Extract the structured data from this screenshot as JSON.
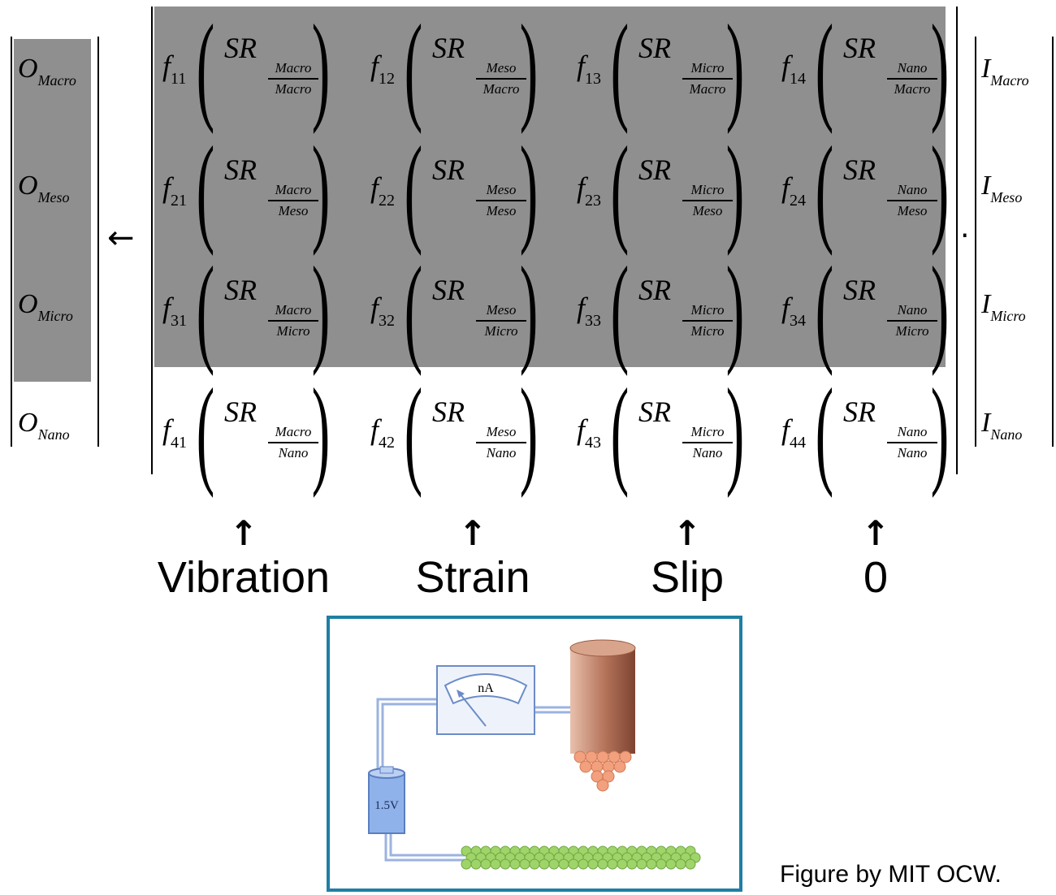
{
  "output_vector": [
    {
      "base": "O",
      "sub": "Macro"
    },
    {
      "base": "O",
      "sub": "Meso"
    },
    {
      "base": "O",
      "sub": "Micro"
    },
    {
      "base": "O",
      "sub": "Nano"
    }
  ],
  "input_vector": [
    {
      "base": "I",
      "sub": "Macro"
    },
    {
      "base": "I",
      "sub": "Meso"
    },
    {
      "base": "I",
      "sub": "Micro"
    },
    {
      "base": "I",
      "sub": "Nano"
    }
  ],
  "assign_arrow": "←",
  "dot_operator": "·",
  "matrix": {
    "function_symbol": "f",
    "ratio_symbol": "SR",
    "rows": [
      [
        {
          "idx": "11",
          "num": "Macro",
          "den": "Macro"
        },
        {
          "idx": "12",
          "num": "Meso",
          "den": "Macro"
        },
        {
          "idx": "13",
          "num": "Micro",
          "den": "Macro"
        },
        {
          "idx": "14",
          "num": "Nano",
          "den": "Macro"
        }
      ],
      [
        {
          "idx": "21",
          "num": "Macro",
          "den": "Meso"
        },
        {
          "idx": "22",
          "num": "Meso",
          "den": "Meso"
        },
        {
          "idx": "23",
          "num": "Micro",
          "den": "Meso"
        },
        {
          "idx": "24",
          "num": "Nano",
          "den": "Meso"
        }
      ],
      [
        {
          "idx": "31",
          "num": "Macro",
          "den": "Micro"
        },
        {
          "idx": "32",
          "num": "Meso",
          "den": "Micro"
        },
        {
          "idx": "33",
          "num": "Micro",
          "den": "Micro"
        },
        {
          "idx": "34",
          "num": "Nano",
          "den": "Micro"
        }
      ],
      [
        {
          "idx": "41",
          "num": "Macro",
          "den": "Nano"
        },
        {
          "idx": "42",
          "num": "Meso",
          "den": "Nano"
        },
        {
          "idx": "43",
          "num": "Micro",
          "den": "Nano"
        },
        {
          "idx": "44",
          "num": "Nano",
          "den": "Nano"
        }
      ]
    ]
  },
  "column_labels": {
    "arrow": "↑",
    "items": [
      "Vibration",
      "Strain",
      "Slip",
      "0"
    ]
  },
  "circuit": {
    "meter_label": "nA",
    "battery_label": "1.5V"
  },
  "credit": "Figure by MIT OCW.",
  "colors": {
    "highlight_gray": "#8f8f8f",
    "frame_blue": "#1f7fa3",
    "wire_blue": "#9bb3e0",
    "tip_copper": "#b8775e",
    "tip_beads": "#f2a07d",
    "sample_green": "#9fd46a",
    "battery_blue": "#8fb2ea"
  }
}
